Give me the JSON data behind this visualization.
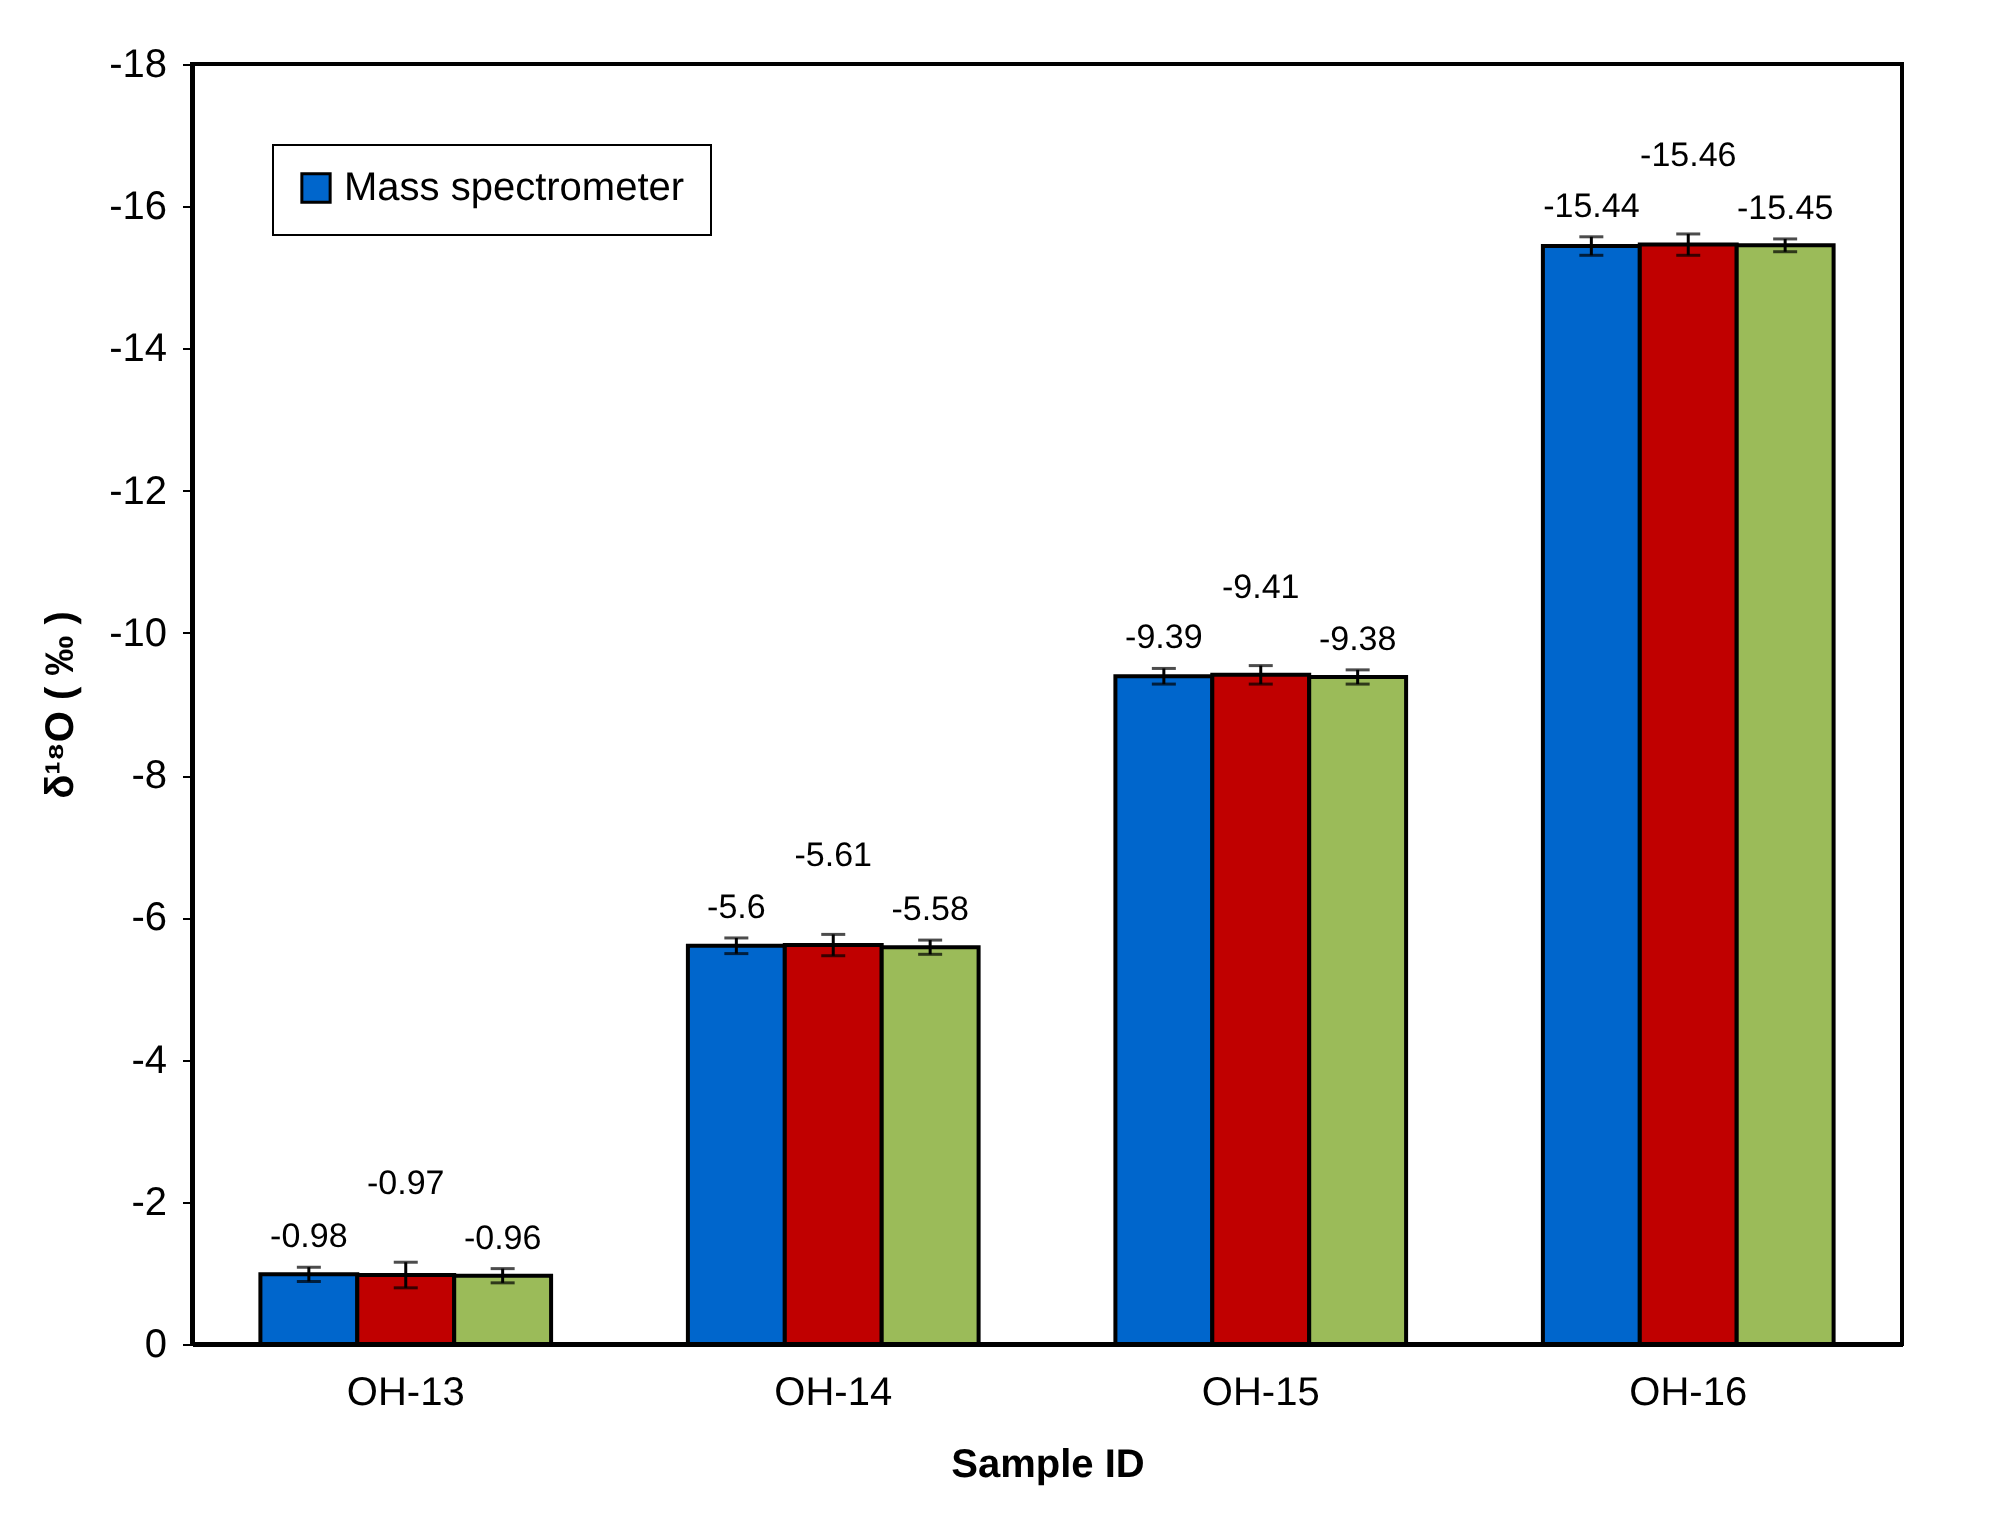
{
  "chart_data": {
    "type": "bar",
    "xlabel": "Sample ID",
    "ylabel": "δ¹⁸O ( ‰ )",
    "categories": [
      "OH-13",
      "OH-14",
      "OH-15",
      "OH-16"
    ],
    "series": [
      {
        "name": "Mass spectrometer",
        "color": "#0066cc",
        "values": [
          -0.98,
          -5.6,
          -9.39,
          -15.44
        ],
        "errors": [
          0.1,
          0.11,
          0.11,
          0.13
        ]
      },
      {
        "color": "#c00000",
        "values": [
          -0.97,
          -5.61,
          -9.41,
          -15.46
        ],
        "errors": [
          0.18,
          0.15,
          0.13,
          0.15
        ]
      },
      {
        "color": "#9bbb59",
        "values": [
          -0.96,
          -5.58,
          -9.38,
          -15.45
        ],
        "errors": [
          0.1,
          0.1,
          0.1,
          0.09
        ]
      }
    ],
    "ylim": [
      0,
      -18
    ],
    "yticks": [
      0,
      -2,
      -4,
      -6,
      -8,
      -10,
      -12,
      -14,
      -16,
      -18
    ],
    "data_labels": true,
    "grid": false,
    "legend": "top left"
  }
}
